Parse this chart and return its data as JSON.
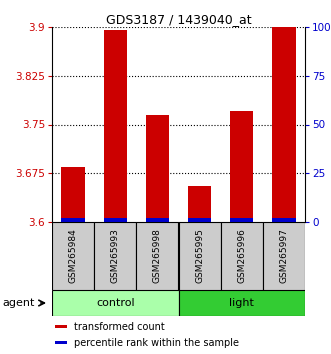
{
  "title": "GDS3187 / 1439040_at",
  "categories": [
    "GSM265984",
    "GSM265993",
    "GSM265998",
    "GSM265995",
    "GSM265996",
    "GSM265997"
  ],
  "bar_values": [
    3.685,
    3.895,
    3.765,
    3.655,
    3.77,
    3.9
  ],
  "ylim": [
    3.6,
    3.9
  ],
  "yticks": [
    3.6,
    3.675,
    3.75,
    3.825,
    3.9
  ],
  "ytick_labels": [
    "3.6",
    "3.675",
    "3.75",
    "3.825",
    "3.9"
  ],
  "right_yticks": [
    0,
    25,
    50,
    75,
    100
  ],
  "right_ytick_labels": [
    "0",
    "25",
    "50",
    "75",
    "100%"
  ],
  "bar_color": "#cc0000",
  "percentile_color": "#0000cc",
  "bar_width": 0.55,
  "blue_bar_height": 0.006,
  "groups": [
    {
      "label": "control",
      "indices": [
        0,
        1,
        2
      ],
      "color": "#aaffaa"
    },
    {
      "label": "light",
      "indices": [
        3,
        4,
        5
      ],
      "color": "#33cc33"
    }
  ],
  "agent_label": "agent",
  "sample_box_color": "#cccccc",
  "legend_items": [
    {
      "label": "transformed count",
      "color": "#cc0000"
    },
    {
      "label": "percentile rank within the sample",
      "color": "#0000cc"
    }
  ],
  "title_fontsize": 9,
  "tick_fontsize": 7.5,
  "sample_fontsize": 6.5,
  "group_fontsize": 8,
  "legend_fontsize": 7
}
